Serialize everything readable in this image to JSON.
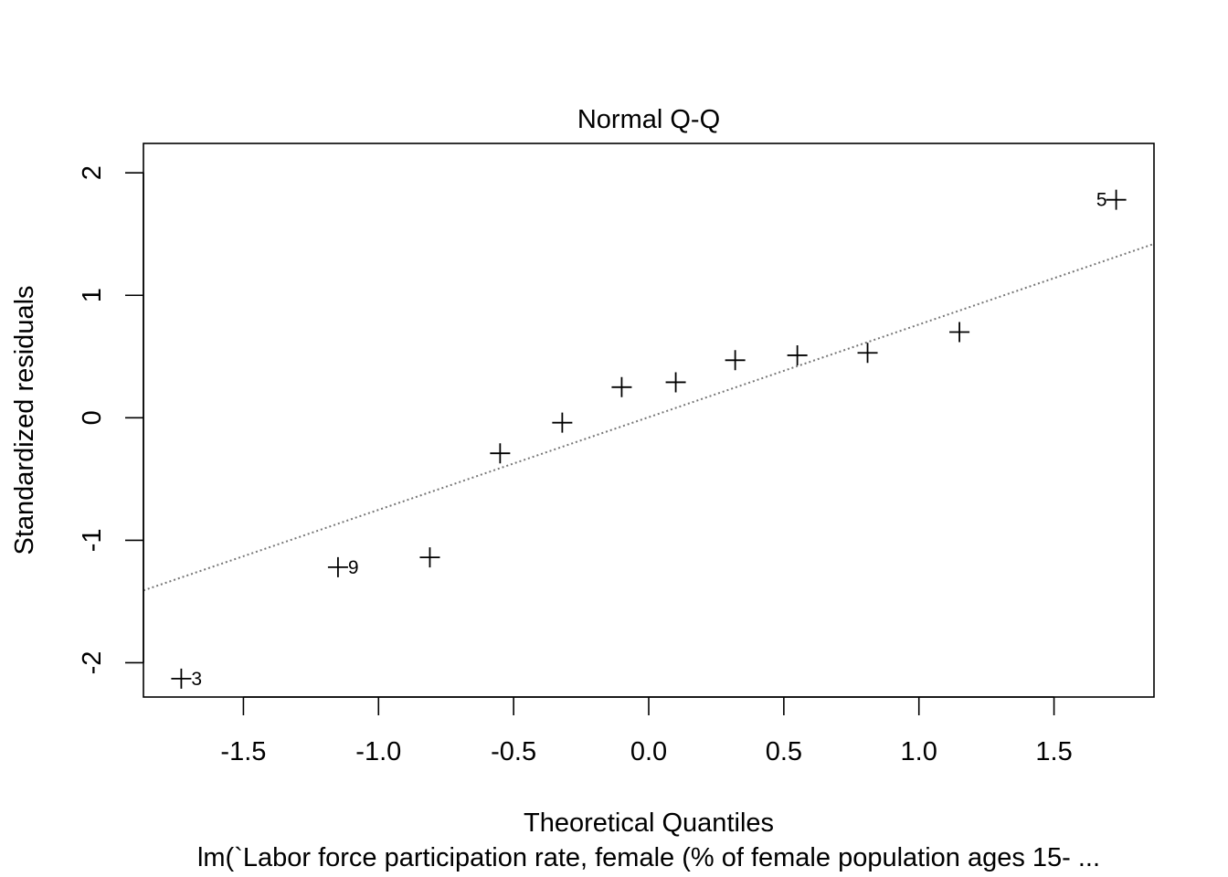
{
  "chart_data": {
    "type": "scatter",
    "title": "Normal Q-Q",
    "xlabel": "Theoretical Quantiles",
    "ylabel": "Standardized residuals",
    "subtitle": "lm(`Labor force participation rate, female (% of female population ages 15- ...",
    "xlim": [
      -1.87,
      1.87
    ],
    "ylim": [
      -2.28,
      2.24
    ],
    "x_ticks": [
      -1.5,
      -1.0,
      -0.5,
      0.0,
      0.5,
      1.0,
      1.5
    ],
    "x_tick_labels": [
      "-1.5",
      "-1.0",
      "-0.5",
      "0.0",
      "0.5",
      "1.0",
      "1.5"
    ],
    "y_ticks": [
      -2,
      -1,
      0,
      1,
      2
    ],
    "y_tick_labels": [
      "-2",
      "-1",
      "0",
      "1",
      "2"
    ],
    "grid": false,
    "points": [
      {
        "x": -1.73,
        "y": -2.13,
        "label": "3"
      },
      {
        "x": -1.15,
        "y": -1.22,
        "label": "9"
      },
      {
        "x": -0.81,
        "y": -1.14,
        "label": ""
      },
      {
        "x": -0.55,
        "y": -0.29,
        "label": ""
      },
      {
        "x": -0.32,
        "y": -0.04,
        "label": ""
      },
      {
        "x": -0.1,
        "y": 0.25,
        "label": ""
      },
      {
        "x": 0.1,
        "y": 0.29,
        "label": ""
      },
      {
        "x": 0.32,
        "y": 0.47,
        "label": ""
      },
      {
        "x": 0.55,
        "y": 0.51,
        "label": ""
      },
      {
        "x": 0.81,
        "y": 0.53,
        "label": ""
      },
      {
        "x": 1.15,
        "y": 0.7,
        "label": ""
      },
      {
        "x": 1.73,
        "y": 1.78,
        "label": "5"
      }
    ],
    "reference_line": {
      "x": [
        -1.87,
        1.87
      ],
      "y": [
        -1.41,
        1.42
      ],
      "style": "dotted",
      "color": "#777777"
    }
  }
}
